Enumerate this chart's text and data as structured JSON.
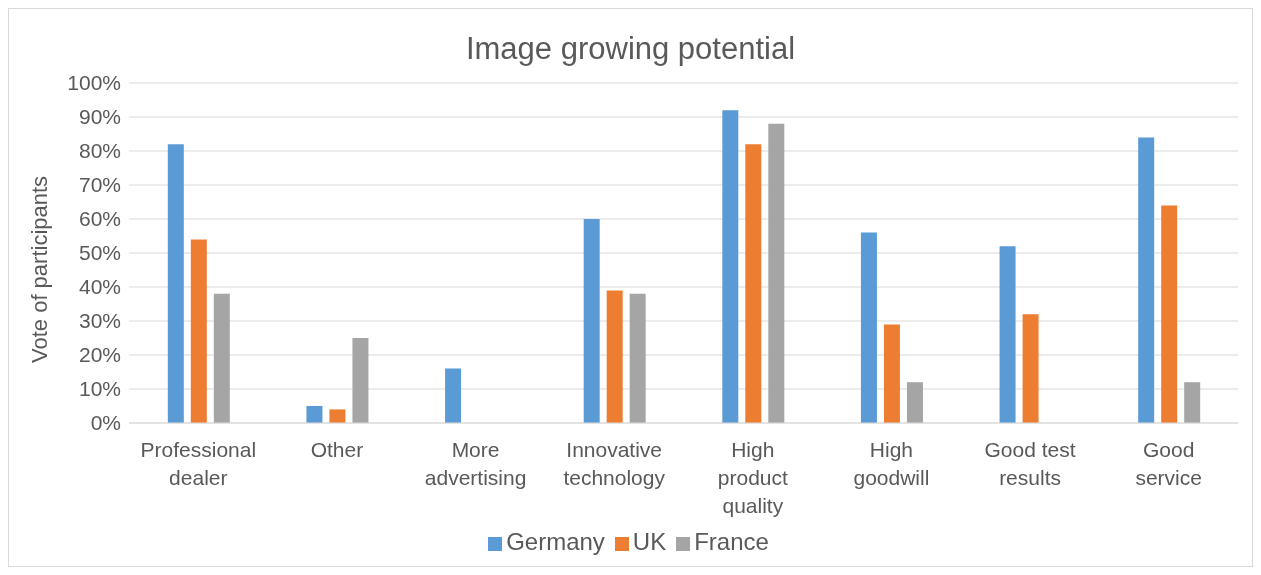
{
  "chart_data": {
    "type": "bar",
    "title": "Image growing  potential",
    "ylabel": "Vote of participants",
    "categories": [
      "Professional dealer",
      "Other",
      "More advertising",
      "Innovative technology",
      "High product quality",
      "High goodwill",
      "Good test results",
      "Good service"
    ],
    "series": [
      {
        "name": "Germany",
        "color": "#5b9bd5",
        "values": [
          82,
          5,
          16,
          60,
          92,
          56,
          52,
          84
        ]
      },
      {
        "name": "UK",
        "color": "#ed7d31",
        "values": [
          54,
          4,
          0,
          39,
          82,
          29,
          32,
          64
        ]
      },
      {
        "name": "France",
        "color": "#a5a5a5",
        "values": [
          38,
          25,
          0,
          38,
          88,
          12,
          0,
          12
        ]
      }
    ],
    "ylim": [
      0,
      100
    ],
    "yticks": [
      {
        "value": 0,
        "label": "0%"
      },
      {
        "value": 10,
        "label": "10%"
      },
      {
        "value": 20,
        "label": "20%"
      },
      {
        "value": 30,
        "label": "30%"
      },
      {
        "value": 40,
        "label": "40%"
      },
      {
        "value": 50,
        "label": "50%"
      },
      {
        "value": 60,
        "label": "60%"
      },
      {
        "value": 70,
        "label": "70%"
      },
      {
        "value": 80,
        "label": "80%"
      },
      {
        "value": 90,
        "label": "90%"
      },
      {
        "value": 100,
        "label": "100%"
      }
    ],
    "grid": "y",
    "legend": "bottom"
  }
}
